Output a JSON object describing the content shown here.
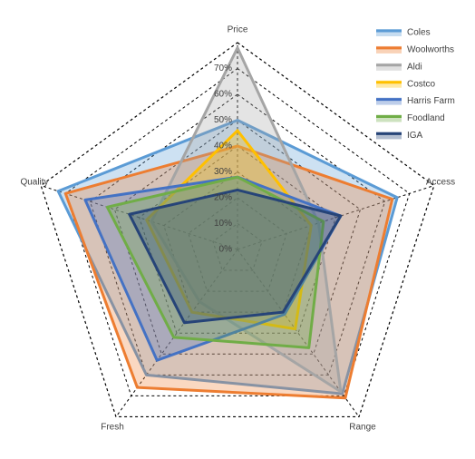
{
  "chart_data": {
    "type": "radar",
    "categories": [
      "Price",
      "Access",
      "Range",
      "Fresh",
      "Quality"
    ],
    "series": [
      {
        "name": "Coles",
        "color": "#5b9bd5",
        "values": [
          50,
          65,
          69,
          60,
          73
        ]
      },
      {
        "name": "Woolworths",
        "color": "#ed7d31",
        "values": [
          40,
          63,
          71,
          66,
          70
        ]
      },
      {
        "name": "Aldi",
        "color": "#a5a5a5",
        "values": [
          78,
          33,
          68,
          25,
          35
        ]
      },
      {
        "name": "Costco",
        "color": "#ffc000",
        "values": [
          46,
          30,
          38,
          30,
          37
        ]
      },
      {
        "name": "Harris Farm",
        "color": "#4472c4",
        "values": [
          28,
          42,
          31,
          53,
          62
        ]
      },
      {
        "name": "Foodland",
        "color": "#70ad47",
        "values": [
          28,
          35,
          47,
          42,
          53
        ]
      },
      {
        "name": "IGA",
        "color": "#264478",
        "values": [
          23,
          42,
          30,
          35,
          44
        ]
      }
    ],
    "ylim": [
      0,
      80
    ],
    "yticks": [
      {
        "value": 0,
        "label": "0%"
      },
      {
        "value": 10,
        "label": "10%"
      },
      {
        "value": 20,
        "label": "20%"
      },
      {
        "value": 30,
        "label": "30%"
      },
      {
        "value": 40,
        "label": "40%"
      },
      {
        "value": 50,
        "label": "50%"
      },
      {
        "value": 60,
        "label": "60%"
      },
      {
        "value": 70,
        "label": "70%"
      }
    ],
    "grid": true,
    "legend": "top-right"
  }
}
